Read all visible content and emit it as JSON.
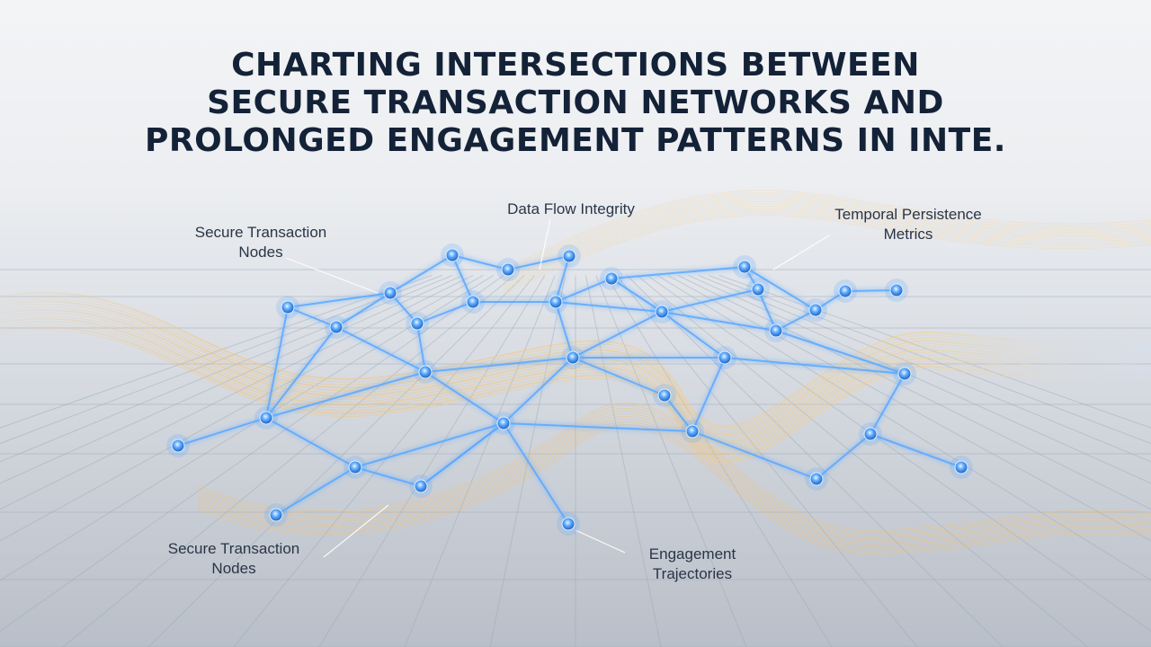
{
  "title": {
    "line1": "CHARTING INTERSECTIONS BETWEEN",
    "line2": "SECURE TRANSACTION NETWORKS AND",
    "line3": "PROLONGED ENGAGEMENT PATTERNS IN INTE."
  },
  "labels": {
    "secure_nodes_top": {
      "line1": "Secure Transaction",
      "line2": "Nodes"
    },
    "data_flow": {
      "line1": "Data Flow Integrity"
    },
    "temporal": {
      "line1": "Temporal Persistence",
      "line2": "Metrics"
    },
    "secure_nodes_bottom": {
      "line1": "Secure Transaction",
      "line2": "Nodes"
    },
    "engagement": {
      "line1": "Engagement",
      "line2": "Trajectories"
    }
  },
  "colors": {
    "node_blue": "#3d8fe6",
    "link_blue": "#5aa8ff",
    "wave_gold": "#f2c277",
    "title_navy": "#142238"
  }
}
